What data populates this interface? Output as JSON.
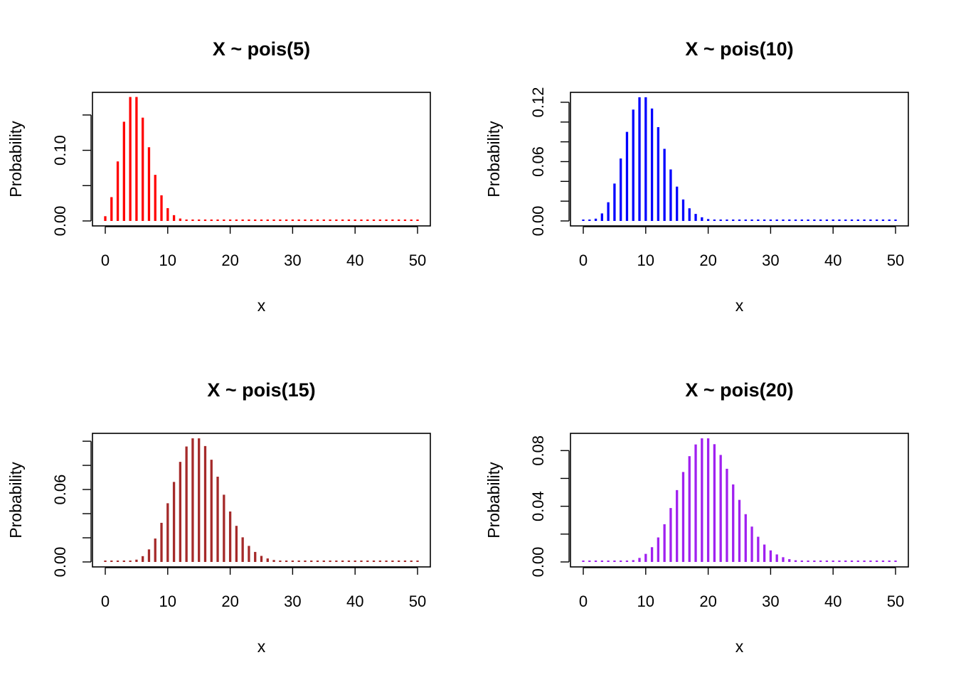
{
  "chart_data": [
    {
      "type": "bar",
      "title": "X ~ pois(5)",
      "lambda": 5,
      "xlabel": "x",
      "ylabel": "Probability",
      "color": "#ff0000",
      "xlim": [
        0,
        50
      ],
      "ylim": [
        0,
        0.175
      ],
      "xticks": [
        "0",
        "10",
        "20",
        "30",
        "40",
        "50"
      ],
      "yticks": [
        0,
        0.05,
        0.1,
        0.15
      ],
      "yticklabels": [
        "0.00",
        "0.10"
      ],
      "x": [
        0,
        1,
        2,
        3,
        4,
        5,
        6,
        7,
        8,
        9,
        10,
        11,
        12,
        13,
        14,
        15,
        16,
        17,
        18,
        19,
        20,
        21,
        22,
        23,
        24,
        25,
        26,
        27,
        28,
        29,
        30,
        31,
        32,
        33,
        34,
        35,
        36,
        37,
        38,
        39,
        40,
        41,
        42,
        43,
        44,
        45,
        46,
        47,
        48,
        49,
        50
      ],
      "values": [
        0.0067,
        0.0337,
        0.0842,
        0.1404,
        0.1755,
        0.1755,
        0.1462,
        0.1044,
        0.0653,
        0.0363,
        0.0181,
        0.0082,
        0.0034,
        0.0013,
        0.0005,
        0.0002,
        0,
        0,
        0,
        0,
        0,
        0,
        0,
        0,
        0,
        0,
        0,
        0,
        0,
        0,
        0,
        0,
        0,
        0,
        0,
        0,
        0,
        0,
        0,
        0,
        0,
        0,
        0,
        0,
        0,
        0,
        0,
        0,
        0,
        0,
        0
      ]
    },
    {
      "type": "bar",
      "title": "X ~ pois(10)",
      "lambda": 10,
      "xlabel": "x",
      "ylabel": "Probability",
      "color": "#0000ff",
      "xlim": [
        0,
        50
      ],
      "ylim": [
        0,
        0.125
      ],
      "xticks": [
        "0",
        "10",
        "20",
        "30",
        "40",
        "50"
      ],
      "yticks": [
        0,
        0.02,
        0.04,
        0.06,
        0.08,
        0.1,
        0.12
      ],
      "yticklabels": [
        "0.00",
        "0.06",
        "0.12"
      ],
      "x": [
        0,
        1,
        2,
        3,
        4,
        5,
        6,
        7,
        8,
        9,
        10,
        11,
        12,
        13,
        14,
        15,
        16,
        17,
        18,
        19,
        20,
        21,
        22,
        23,
        24,
        25,
        26,
        27,
        28,
        29,
        30,
        31,
        32,
        33,
        34,
        35,
        36,
        37,
        38,
        39,
        40,
        41,
        42,
        43,
        44,
        45,
        46,
        47,
        48,
        49,
        50
      ],
      "values": [
        0.0,
        0.0005,
        0.0023,
        0.0076,
        0.0189,
        0.0378,
        0.0631,
        0.0901,
        0.1126,
        0.1251,
        0.1251,
        0.1137,
        0.0948,
        0.0729,
        0.0521,
        0.0347,
        0.0217,
        0.0128,
        0.0071,
        0.0037,
        0.0019,
        0.0009,
        0.0004,
        0.0002,
        0.0001,
        0,
        0,
        0,
        0,
        0,
        0,
        0,
        0,
        0,
        0,
        0,
        0,
        0,
        0,
        0,
        0,
        0,
        0,
        0,
        0,
        0,
        0,
        0,
        0,
        0,
        0
      ]
    },
    {
      "type": "bar",
      "title": "X ~ pois(15)",
      "lambda": 15,
      "xlabel": "x",
      "ylabel": "Probability",
      "color": "#a52a2a",
      "xlim": [
        0,
        50
      ],
      "ylim": [
        0,
        0.1024
      ],
      "xticks": [
        "0",
        "10",
        "20",
        "30",
        "40",
        "50"
      ],
      "yticks": [
        0,
        0.02,
        0.04,
        0.06,
        0.08,
        0.1
      ],
      "yticklabels": [
        "0.00",
        "0.06"
      ],
      "x": [
        0,
        1,
        2,
        3,
        4,
        5,
        6,
        7,
        8,
        9,
        10,
        11,
        12,
        13,
        14,
        15,
        16,
        17,
        18,
        19,
        20,
        21,
        22,
        23,
        24,
        25,
        26,
        27,
        28,
        29,
        30,
        31,
        32,
        33,
        34,
        35,
        36,
        37,
        38,
        39,
        40,
        41,
        42,
        43,
        44,
        45,
        46,
        47,
        48,
        49,
        50
      ],
      "values": [
        0.0,
        0.0,
        0.0,
        0.0002,
        0.0006,
        0.0019,
        0.0048,
        0.0104,
        0.0194,
        0.0324,
        0.0486,
        0.0663,
        0.0829,
        0.0956,
        0.1024,
        0.1024,
        0.096,
        0.0847,
        0.0706,
        0.0557,
        0.0418,
        0.0299,
        0.0204,
        0.0133,
        0.0083,
        0.005,
        0.0029,
        0.0016,
        0.0009,
        0.0004,
        0.0002,
        0.0001,
        0.0001,
        0,
        0,
        0,
        0,
        0,
        0,
        0,
        0,
        0,
        0,
        0,
        0,
        0,
        0,
        0,
        0,
        0,
        0
      ]
    },
    {
      "type": "bar",
      "title": "X ~ pois(20)",
      "lambda": 20,
      "xlabel": "x",
      "ylabel": "Probability",
      "color": "#a020f0",
      "xlim": [
        0,
        50
      ],
      "ylim": [
        0,
        0.0888
      ],
      "xticks": [
        "0",
        "10",
        "20",
        "30",
        "40",
        "50"
      ],
      "yticks": [
        0,
        0.02,
        0.04,
        0.06,
        0.08
      ],
      "yticklabels": [
        "0.00",
        "0.04",
        "0.08"
      ],
      "x": [
        0,
        1,
        2,
        3,
        4,
        5,
        6,
        7,
        8,
        9,
        10,
        11,
        12,
        13,
        14,
        15,
        16,
        17,
        18,
        19,
        20,
        21,
        22,
        23,
        24,
        25,
        26,
        27,
        28,
        29,
        30,
        31,
        32,
        33,
        34,
        35,
        36,
        37,
        38,
        39,
        40,
        41,
        42,
        43,
        44,
        45,
        46,
        47,
        48,
        49,
        50
      ],
      "values": [
        0.0,
        0.0,
        0.0,
        0.0,
        0.0,
        0.0001,
        0.0002,
        0.0005,
        0.0013,
        0.0029,
        0.0058,
        0.0106,
        0.0176,
        0.0271,
        0.0387,
        0.0516,
        0.0646,
        0.076,
        0.0844,
        0.0888,
        0.0888,
        0.0846,
        0.0769,
        0.0669,
        0.0557,
        0.0446,
        0.0343,
        0.0254,
        0.0181,
        0.0125,
        0.0083,
        0.0054,
        0.0034,
        0.002,
        0.0012,
        0.0007,
        0.0004,
        0.0002,
        0.0001,
        0.0001,
        0,
        0,
        0,
        0,
        0,
        0,
        0,
        0,
        0,
        0,
        0
      ]
    }
  ]
}
